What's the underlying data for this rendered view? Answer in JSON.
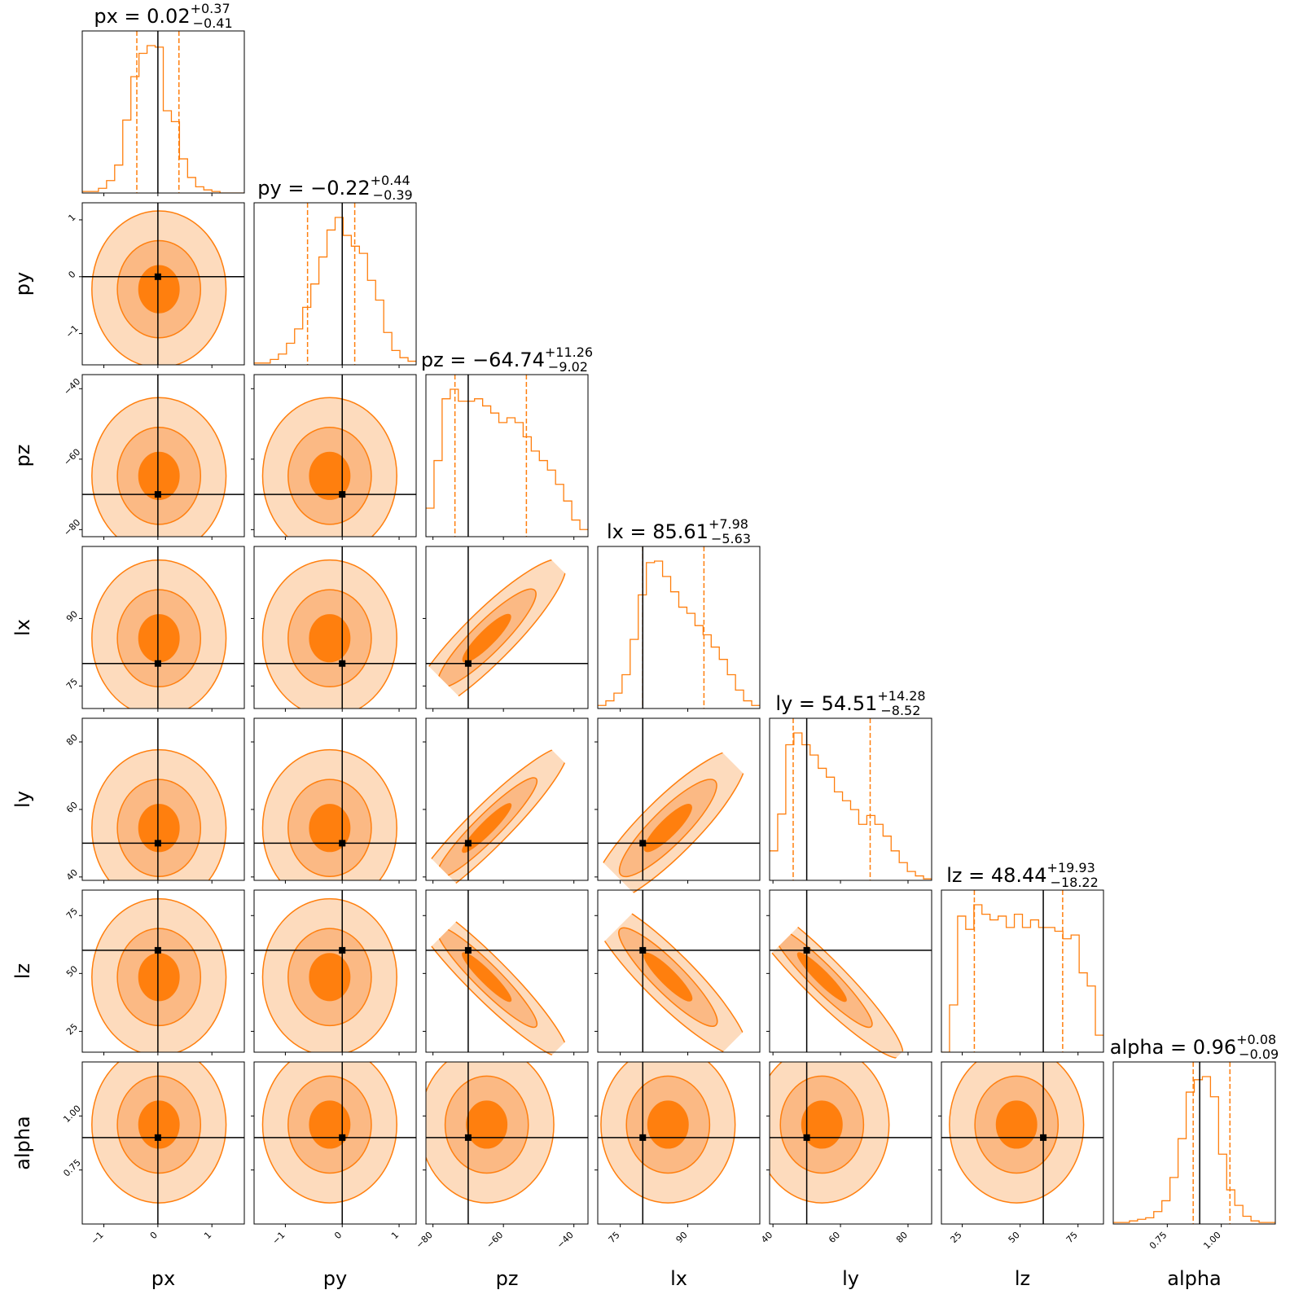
{
  "chart_data": {
    "type": "corner",
    "parameters": [
      "px",
      "py",
      "pz",
      "lx",
      "ly",
      "lz",
      "alpha"
    ],
    "axis_labels": [
      "px",
      "py",
      "pz",
      "lx",
      "ly",
      "lz",
      "alpha"
    ],
    "ranges": [
      [
        -1.4,
        1.6
      ],
      [
        -1.55,
        1.3
      ],
      [
        -82,
        -36
      ],
      [
        70,
        106
      ],
      [
        39,
        87
      ],
      [
        16,
        86
      ],
      [
        0.5,
        1.25
      ]
    ],
    "ticks": [
      [
        -1,
        0,
        1
      ],
      [
        -1,
        0,
        1
      ],
      [
        -80,
        -60,
        -40
      ],
      [
        75,
        90
      ],
      [
        40,
        60,
        80
      ],
      [
        25,
        50,
        75
      ],
      [
        0.75,
        1.0
      ]
    ],
    "tick_labels": [
      [
        "−1",
        "0",
        "1"
      ],
      [
        "−1",
        "0",
        "1"
      ],
      [
        "−80",
        "−60",
        "−40"
      ],
      [
        "75",
        "90"
      ],
      [
        "40",
        "60",
        "80"
      ],
      [
        "25",
        "50",
        "75"
      ],
      [
        "0.75",
        "1.00"
      ]
    ],
    "truths": [
      0.0,
      0.0,
      -70.0,
      80.0,
      50.0,
      60.0,
      0.9
    ],
    "titles": [
      {
        "param": "px",
        "value": "0.02",
        "plus": "+0.37",
        "minus": "−0.41"
      },
      {
        "param": "py",
        "value": "−0.22",
        "plus": "+0.44",
        "minus": "−0.39"
      },
      {
        "param": "pz",
        "value": "−64.74",
        "plus": "+11.26",
        "minus": "−9.02"
      },
      {
        "param": "lx",
        "value": "85.61",
        "plus": "+7.98",
        "minus": "−5.63"
      },
      {
        "param": "ly",
        "value": "54.51",
        "plus": "+14.28",
        "minus": "−8.52"
      },
      {
        "param": "lz",
        "value": "48.44",
        "plus": "+19.93",
        "minus": "−18.22"
      },
      {
        "param": "alpha",
        "value": "0.96",
        "plus": "+0.08",
        "minus": "−0.09"
      }
    ],
    "medians": [
      0.02,
      -0.22,
      -64.74,
      85.61,
      54.51,
      48.44,
      0.96
    ],
    "quantile_lo": [
      -0.39,
      -0.61,
      -73.76,
      79.98,
      45.99,
      30.22,
      0.87
    ],
    "quantile_hi": [
      0.39,
      0.22,
      -53.48,
      93.59,
      68.79,
      68.37,
      1.04
    ],
    "histograms": [
      [
        1,
        1,
        3,
        8,
        18,
        47,
        75,
        90,
        95,
        94,
        53,
        46,
        22,
        10,
        4,
        2,
        1,
        0,
        0,
        0
      ],
      [
        1,
        1,
        3,
        6,
        12,
        20,
        32,
        45,
        60,
        75,
        82,
        72,
        66,
        62,
        47,
        36,
        18,
        8,
        4,
        2
      ],
      [
        12,
        32,
        58,
        62,
        57,
        57,
        58,
        55,
        52,
        48,
        50,
        48,
        42,
        36,
        32,
        28,
        22,
        15,
        7,
        3
      ],
      [
        2,
        5,
        10,
        22,
        45,
        74,
        95,
        96,
        86,
        76,
        66,
        62,
        54,
        48,
        40,
        32,
        22,
        12,
        5,
        2
      ],
      [
        20,
        45,
        92,
        100,
        92,
        85,
        76,
        70,
        60,
        54,
        48,
        38,
        44,
        38,
        30,
        20,
        12,
        6,
        3,
        1
      ],
      [
        0,
        25,
        72,
        65,
        78,
        73,
        70,
        72,
        66,
        73,
        66,
        70,
        66,
        66,
        64,
        60,
        62,
        42,
        35,
        9
      ],
      [
        1,
        1,
        2,
        3,
        4,
        8,
        15,
        30,
        55,
        85,
        93,
        95,
        82,
        45,
        22,
        12,
        5,
        2,
        1,
        1
      ]
    ],
    "levels": [
      "outer",
      "middle",
      "inner"
    ],
    "contour_fill_colors": [
      "#fddbbd",
      "#fbb984",
      "#ff7f0e"
    ],
    "line_color": "#ff7f0e",
    "truth_color": "#000000",
    "grid": false
  }
}
